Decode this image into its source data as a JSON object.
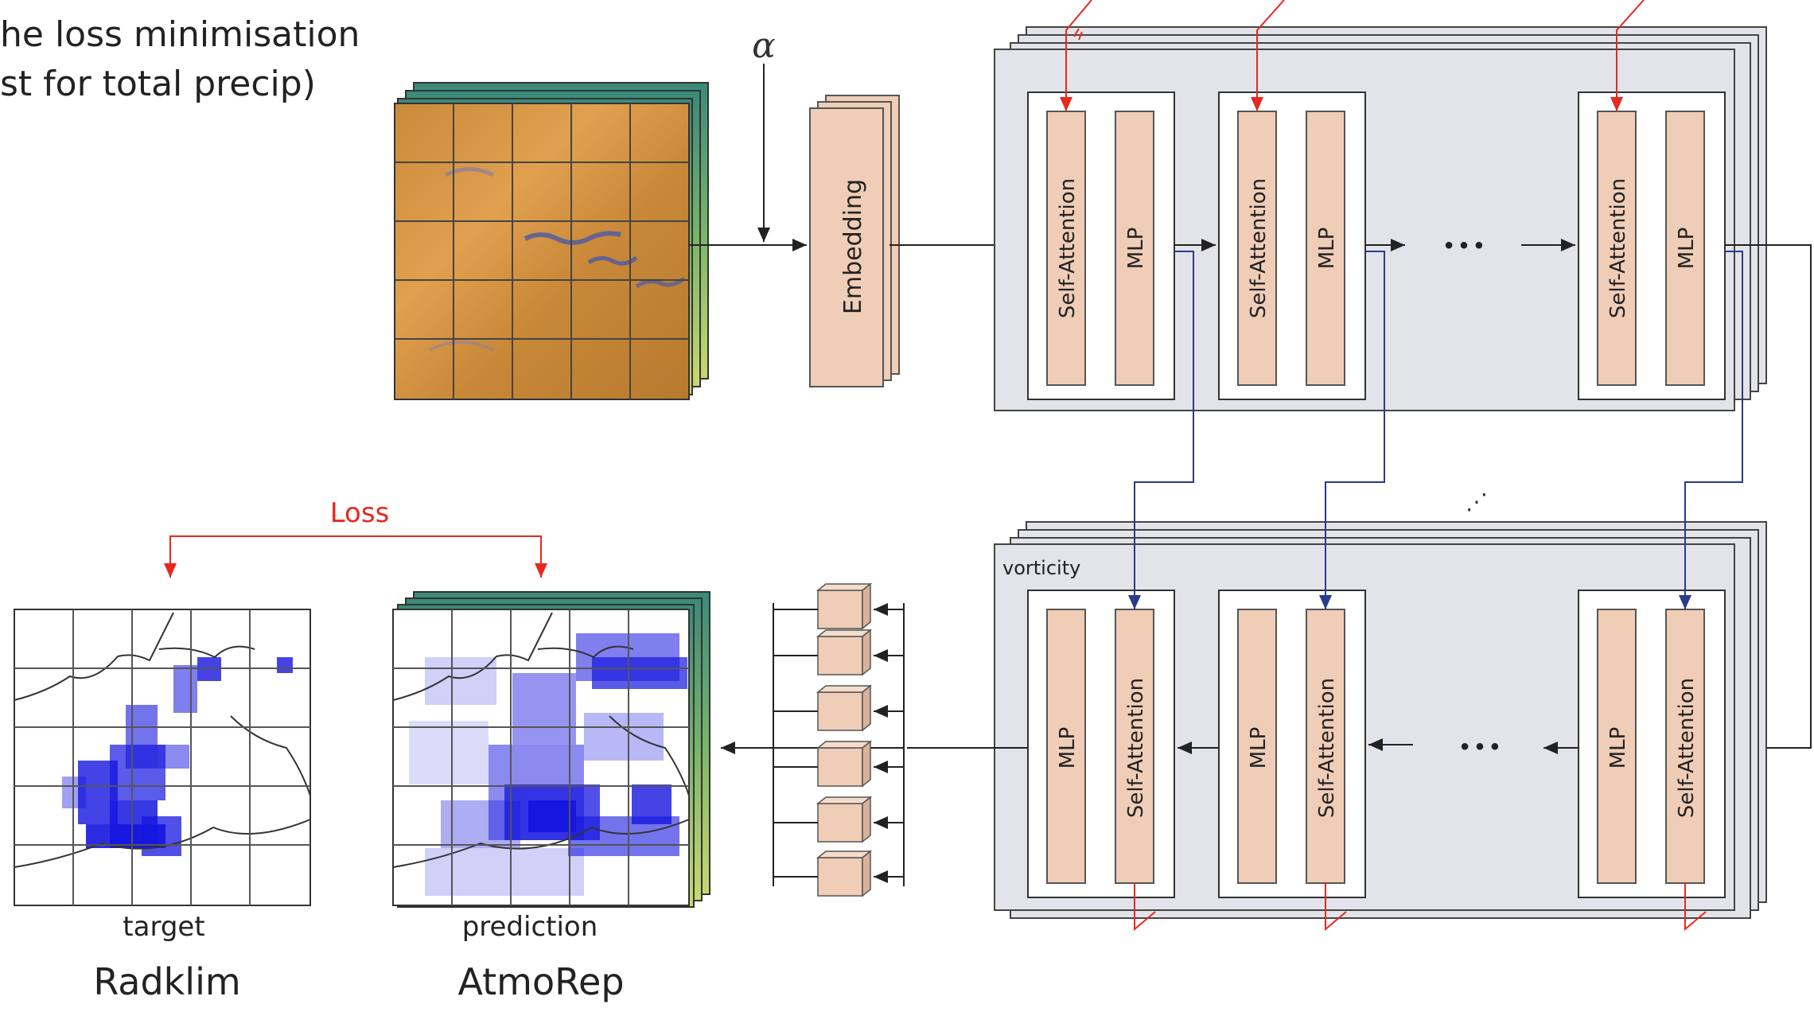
{
  "intro": {
    "line1": "he loss minimisation",
    "line2": "st for total precip)"
  },
  "alpha_symbol": "α",
  "embedding": {
    "label": "Embedding"
  },
  "encoder": {
    "blocks": [
      {
        "attention": "Self-Attention",
        "mlp": "MLP"
      },
      {
        "attention": "Self-Attention",
        "mlp": "MLP"
      },
      {
        "attention": "Self-Attention",
        "mlp": "MLP"
      }
    ],
    "ellipsis": "• • •"
  },
  "decoder": {
    "field_label": "vorticity",
    "blocks": [
      {
        "mlp": "MLP",
        "attention": "Self-Attention"
      },
      {
        "mlp": "MLP",
        "attention": "Self-Attention"
      },
      {
        "mlp": "MLP",
        "attention": "Self-Attention"
      }
    ],
    "ellipsis": "• • •",
    "stack_dots": "⋰"
  },
  "loss": {
    "label": "Loss"
  },
  "maps": {
    "target": {
      "caption": "target",
      "source": "Radklim"
    },
    "prediction": {
      "caption": "prediction",
      "source": "AtmoRep"
    }
  },
  "colors": {
    "loss_red": "#e8281e",
    "skip_blue": "#2a3a8c",
    "block_fill": "#efcdb7",
    "panel_fill": "#e3e4ea",
    "precip_blue": "#1515e0"
  }
}
